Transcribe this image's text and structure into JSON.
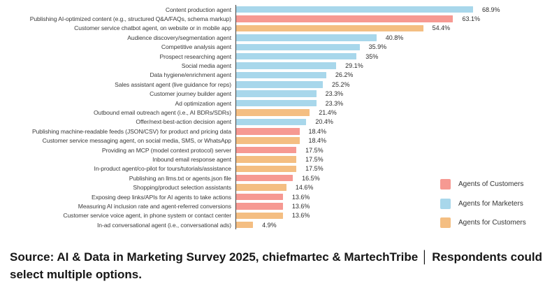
{
  "chart_data": {
    "type": "bar",
    "orientation": "horizontal",
    "value_unit": "%",
    "xlim": [
      0,
      72
    ],
    "grid": false,
    "legend_position": "right",
    "legend": [
      {
        "label": "Agents of Customers",
        "color": "#f69992"
      },
      {
        "label": "Agents for Marketers",
        "color": "#a8d7eb"
      },
      {
        "label": "Agents for Customers",
        "color": "#f4be82"
      }
    ],
    "bars": [
      {
        "category": "Content production agent",
        "value": 68.9,
        "value_label": "68.9%",
        "series": "Agents for Marketers"
      },
      {
        "category": "Publishing AI-optimized content (e.g., structured Q&A/FAQs, schema markup)",
        "value": 63.1,
        "value_label": "63.1%",
        "series": "Agents of Customers"
      },
      {
        "category": "Customer service chatbot agent, on website or in mobile app",
        "value": 54.4,
        "value_label": "54.4%",
        "series": "Agents for Customers"
      },
      {
        "category": "Audience discovery/segmentation agent",
        "value": 40.8,
        "value_label": "40.8%",
        "series": "Agents for Marketers"
      },
      {
        "category": "Competitive analysis agent",
        "value": 35.9,
        "value_label": "35.9%",
        "series": "Agents for Marketers"
      },
      {
        "category": "Prospect researching agent",
        "value": 35,
        "value_label": "35%",
        "series": "Agents for Marketers"
      },
      {
        "category": "Social media agent",
        "value": 29.1,
        "value_label": "29.1%",
        "series": "Agents for Marketers"
      },
      {
        "category": "Data hygiene/enrichment agent",
        "value": 26.2,
        "value_label": "26.2%",
        "series": "Agents for Marketers"
      },
      {
        "category": "Sales assistant agent (live guidance for reps)",
        "value": 25.2,
        "value_label": "25.2%",
        "series": "Agents for Marketers"
      },
      {
        "category": "Customer journey builder agent",
        "value": 23.3,
        "value_label": "23.3%",
        "series": "Agents for Marketers"
      },
      {
        "category": "Ad optimization agent",
        "value": 23.3,
        "value_label": "23.3%",
        "series": "Agents for Marketers"
      },
      {
        "category": "Outbound email outreach agent (i.e., AI BDRs/SDRs)",
        "value": 21.4,
        "value_label": "21.4%",
        "series": "Agents for Customers"
      },
      {
        "category": "Offer/next-best-action decision agent",
        "value": 20.4,
        "value_label": "20.4%",
        "series": "Agents for Marketers"
      },
      {
        "category": "Publishing machine-readable feeds (JSON/CSV) for product and pricing data",
        "value": 18.4,
        "value_label": "18.4%",
        "series": "Agents of Customers"
      },
      {
        "category": "Customer service messaging agent, on social media, SMS, or WhatsApp",
        "value": 18.4,
        "value_label": "18.4%",
        "series": "Agents for Customers"
      },
      {
        "category": "Providing an MCP (model context protocol) server",
        "value": 17.5,
        "value_label": "17.5%",
        "series": "Agents of Customers"
      },
      {
        "category": "Inbound email response agent",
        "value": 17.5,
        "value_label": "17.5%",
        "series": "Agents for Customers"
      },
      {
        "category": "In-product agent/co-pilot for tours/tutorials/assistance",
        "value": 17.5,
        "value_label": "17.5%",
        "series": "Agents for Customers"
      },
      {
        "category": "Publishing an llms.txt or agents.json file",
        "value": 16.5,
        "value_label": "16.5%",
        "series": "Agents of Customers"
      },
      {
        "category": "Shopping/product selection assistants",
        "value": 14.6,
        "value_label": "14.6%",
        "series": "Agents for Customers"
      },
      {
        "category": "Exposing deep links/APIs for AI agents to take actions",
        "value": 13.6,
        "value_label": "13.6%",
        "series": "Agents of Customers"
      },
      {
        "category": "Measuring AI inclusion rate and agent-referred conversions",
        "value": 13.6,
        "value_label": "13.6%",
        "series": "Agents of Customers"
      },
      {
        "category": "Customer service voice agent, in phone system or contact center",
        "value": 13.6,
        "value_label": "13.6%",
        "series": "Agents for Customers"
      },
      {
        "category": "In-ad conversational agent (i.e., conversational ads)",
        "value": 4.9,
        "value_label": "4.9%",
        "series": "Agents for Customers"
      }
    ]
  },
  "colors": {
    "agents_of_customers": "#f69992",
    "agents_for_marketers": "#a8d7eb",
    "agents_for_customers": "#f4be82",
    "axis_line": "#3f3f3f",
    "category_text": "#3b3b3b",
    "footer_text": "#161616"
  },
  "footer": {
    "text": "Source: AI & Data in Marketing Survey 2025, chiefmartec & MartechTribe │ Respondents could select multiple options."
  }
}
